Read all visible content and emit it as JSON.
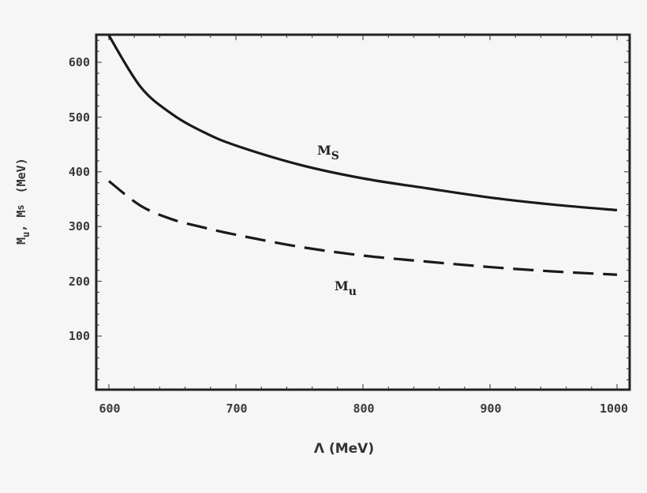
{
  "chart_data": {
    "type": "line",
    "title": "",
    "xlabel": "Λ (MeV)",
    "ylabel": "M_u, M_s (MeV)",
    "xlim": [
      590,
      1010
    ],
    "ylim": [
      0,
      650
    ],
    "x_ticks": [
      600,
      700,
      800,
      900,
      1000
    ],
    "y_ticks": [
      100,
      200,
      300,
      400,
      500,
      600
    ],
    "grid": false,
    "legend": "inline labels",
    "x": [
      600,
      625,
      650,
      675,
      700,
      750,
      800,
      850,
      900,
      950,
      1000
    ],
    "series": [
      {
        "name": "M_s",
        "style": "solid",
        "values": [
          650,
          555,
          505,
          472,
          448,
          413,
          388,
          370,
          353,
          340,
          330
        ]
      },
      {
        "name": "M_u",
        "style": "dashed",
        "values": [
          383,
          338,
          313,
          298,
          285,
          263,
          247,
          236,
          226,
          218,
          212
        ]
      }
    ],
    "annotations": [
      {
        "text": "M_s",
        "x": 770,
        "y": 432
      },
      {
        "text": "M_u",
        "x": 785,
        "y": 192
      }
    ]
  },
  "labels": {
    "x_ticks": [
      "600",
      "700",
      "800",
      "900",
      "1000"
    ],
    "y_ticks": [
      "100",
      "200",
      "300",
      "400",
      "500",
      "600"
    ],
    "xlabel": "Λ (MeV)",
    "ylabel_main1": "M",
    "ylabel_sub1": "u",
    "ylabel_sep": ", ",
    "ylabel_main2": "M",
    "ylabel_sub2": "s",
    "ylabel_unit": "(MeV)",
    "ms_main": "M",
    "ms_sub": "S",
    "mu_main": "M",
    "mu_sub": "u"
  }
}
